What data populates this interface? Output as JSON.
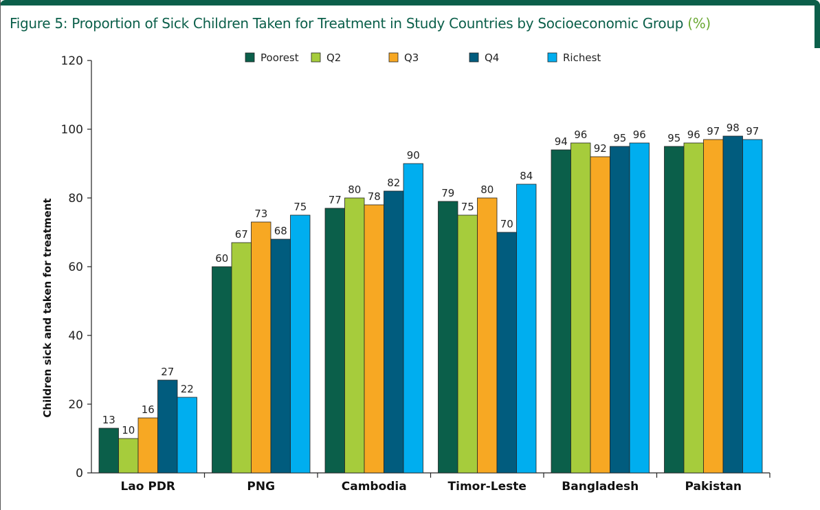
{
  "title": {
    "main": "Figure 5: Proportion of Sick Children Taken for Treatment in Study Countries by Socioeconomic Group",
    "unit": "(%)"
  },
  "colors": {
    "frame": "#0b5f4a",
    "title": "#0b5f4a",
    "unit": "#6aa832"
  },
  "chart_data": {
    "type": "bar",
    "title": "Figure 5: Proportion of Sick Children Taken for Treatment in Study Countries by Socioeconomic Group (%)",
    "xlabel": "",
    "ylabel": "Children sick and taken for treatment",
    "ylim": [
      0,
      120
    ],
    "yticks": [
      0,
      20,
      40,
      60,
      80,
      100,
      120
    ],
    "grid": false,
    "legend_position": "top",
    "categories": [
      "Lao PDR",
      "PNG",
      "Cambodia",
      "Timor-Leste",
      "Bangladesh",
      "Pakistan"
    ],
    "series": [
      {
        "name": "Poorest",
        "color": "#0b5f4a",
        "values": [
          13,
          60,
          77,
          79,
          94,
          95
        ]
      },
      {
        "name": "Q2",
        "color": "#a6cc3c",
        "values": [
          10,
          67,
          80,
          75,
          96,
          96
        ]
      },
      {
        "name": "Q3",
        "color": "#f7a823",
        "values": [
          16,
          73,
          78,
          80,
          92,
          97
        ]
      },
      {
        "name": "Q4",
        "color": "#015c7e",
        "values": [
          27,
          68,
          82,
          70,
          95,
          98
        ]
      },
      {
        "name": "Richest",
        "color": "#00aeef",
        "values": [
          22,
          75,
          90,
          84,
          96,
          97
        ]
      }
    ]
  }
}
